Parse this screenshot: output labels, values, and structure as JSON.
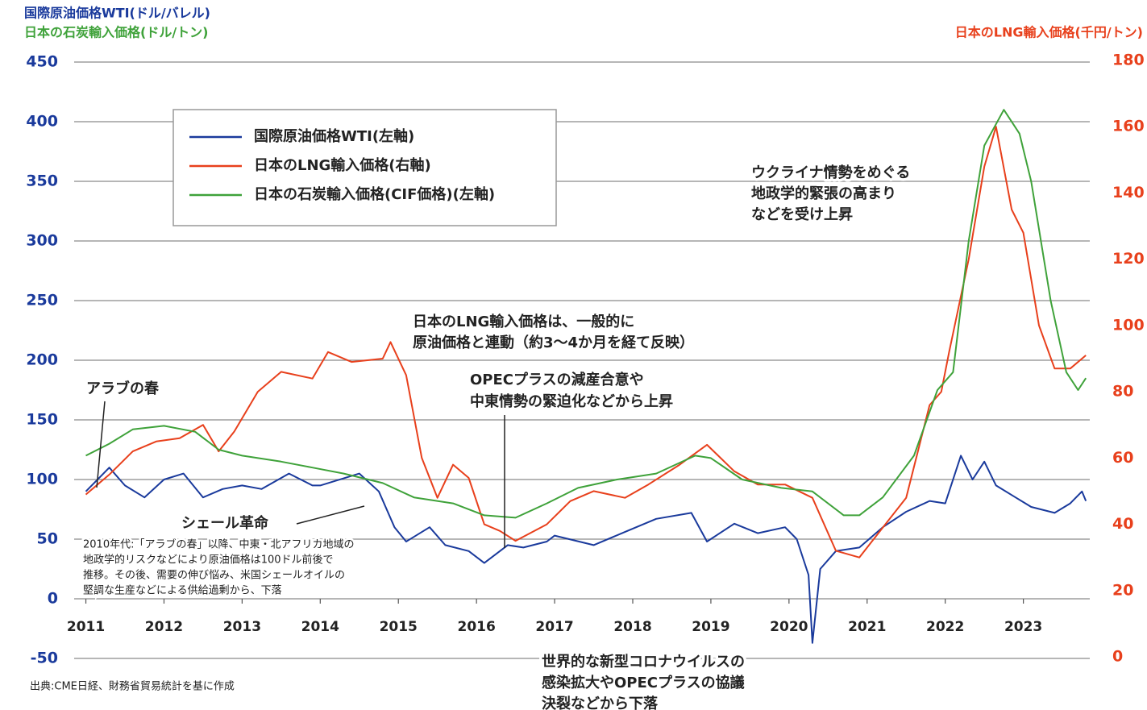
{
  "chart_data": {
    "type": "line",
    "y_label_lines": [
      "国際原油価格WTI(ドル/バレル)",
      "日本の石炭輸入価格(ドル/トン)"
    ],
    "y2_label": "日本のLNG輸入価格(千円/トン)",
    "source": "出典:CME日経、財務省貿易統計を基に作成",
    "xlim": [
      2010.85,
      2023.85
    ],
    "xticks": [
      2011,
      2012,
      2013,
      2014,
      2015,
      2016,
      2017,
      2018,
      2019,
      2020,
      2021,
      2022,
      2023
    ],
    "ylim": [
      -50,
      450
    ],
    "yticks": [
      -50,
      0,
      50,
      100,
      150,
      200,
      250,
      300,
      350,
      400,
      450
    ],
    "y2lim": [
      0,
      180
    ],
    "y2ticks": [
      0,
      20,
      40,
      60,
      80,
      100,
      120,
      140,
      160,
      180
    ],
    "grid": true,
    "series": [
      {
        "name": "国際原油価格WTI(左軸)",
        "color": "#1a3a9c",
        "x": [
          2011.0,
          2011.3,
          2011.5,
          2011.75,
          2012.0,
          2012.25,
          2012.5,
          2012.75,
          2013.0,
          2013.25,
          2013.6,
          2013.9,
          2014.0,
          2014.5,
          2014.75,
          2014.95,
          2015.1,
          2015.4,
          2015.6,
          2015.9,
          2016.1,
          2016.4,
          2016.6,
          2016.9,
          2017.0,
          2017.5,
          2017.9,
          2018.3,
          2018.75,
          2018.95,
          2019.3,
          2019.6,
          2019.95,
          2020.1,
          2020.25,
          2020.3,
          2020.4,
          2020.6,
          2020.9,
          2021.2,
          2021.5,
          2021.8,
          2022.0,
          2022.2,
          2022.35,
          2022.5,
          2022.65,
          2022.9,
          2023.1,
          2023.4,
          2023.6,
          2023.75,
          2023.8
        ],
        "values": [
          90,
          110,
          95,
          85,
          100,
          105,
          85,
          92,
          95,
          92,
          105,
          95,
          95,
          105,
          90,
          60,
          48,
          60,
          45,
          40,
          30,
          45,
          43,
          48,
          53,
          45,
          56,
          67,
          72,
          48,
          63,
          55,
          60,
          50,
          20,
          -37,
          25,
          40,
          43,
          60,
          73,
          82,
          80,
          120,
          100,
          115,
          95,
          85,
          77,
          72,
          80,
          90,
          82
        ]
      },
      {
        "name": "日本のLNG輸入価格(右軸)",
        "color": "#e8401c",
        "axis": "y2",
        "x": [
          2011.0,
          2011.3,
          2011.6,
          2011.9,
          2012.2,
          2012.5,
          2012.7,
          2012.9,
          2013.2,
          2013.5,
          2013.9,
          2014.1,
          2014.4,
          2014.8,
          2014.9,
          2015.1,
          2015.3,
          2015.5,
          2015.7,
          2015.9,
          2016.1,
          2016.3,
          2016.5,
          2016.9,
          2017.2,
          2017.5,
          2017.9,
          2018.2,
          2018.6,
          2018.95,
          2019.3,
          2019.6,
          2019.95,
          2020.3,
          2020.6,
          2020.9,
          2021.1,
          2021.5,
          2021.8,
          2021.95,
          2022.05,
          2022.3,
          2022.5,
          2022.65,
          2022.85,
          2023.0,
          2023.2,
          2023.4,
          2023.6,
          2023.8
        ],
        "values": [
          49,
          55,
          62,
          65,
          66,
          70,
          62,
          68,
          80,
          86,
          84,
          92,
          89,
          90,
          95,
          85,
          60,
          48,
          58,
          54,
          40,
          38,
          35,
          40,
          47,
          50,
          48,
          52,
          58,
          64,
          56,
          52,
          52,
          48,
          32,
          30,
          36,
          48,
          76,
          80,
          92,
          120,
          148,
          160,
          135,
          128,
          100,
          87,
          87,
          91
        ]
      },
      {
        "name": "日本の石炭輸入価格(CIF価格)(左軸)",
        "color": "#3fa23a",
        "x": [
          2011.0,
          2011.3,
          2011.6,
          2012.0,
          2012.4,
          2012.7,
          2013.0,
          2013.5,
          2013.9,
          2014.3,
          2014.8,
          2015.2,
          2015.7,
          2016.1,
          2016.5,
          2016.9,
          2017.3,
          2017.8,
          2018.3,
          2018.8,
          2019.0,
          2019.4,
          2019.9,
          2020.3,
          2020.7,
          2020.9,
          2021.2,
          2021.6,
          2021.9,
          2022.1,
          2022.3,
          2022.5,
          2022.75,
          2022.95,
          2023.1,
          2023.35,
          2023.55,
          2023.7,
          2023.8
        ],
        "values": [
          120,
          130,
          142,
          145,
          140,
          125,
          120,
          115,
          110,
          105,
          97,
          85,
          80,
          70,
          68,
          80,
          93,
          100,
          105,
          120,
          118,
          100,
          93,
          90,
          70,
          70,
          85,
          120,
          175,
          190,
          300,
          380,
          410,
          390,
          350,
          250,
          190,
          175,
          185
        ]
      }
    ],
    "annotations": [
      {
        "lines": [
          "アラブの春"
        ]
      },
      {
        "lines": [
          "シェール革命"
        ]
      },
      {
        "lines": [
          "2010年代:「アラブの春」以降、中東・北アフリカ地域の",
          "地政学的リスクなどにより原油価格は100ドル前後で",
          "推移。その後、需要の伸び悩み、米国シェールオイルの",
          "堅調な生産などによる供給過剰から、下落"
        ]
      },
      {
        "lines": [
          "日本のLNG輸入価格は、一般的に",
          "原油価格と連動（約3〜4か月を経て反映）"
        ]
      },
      {
        "lines": [
          "OPECプラスの減産合意や",
          "中東情勢の緊迫化などから上昇"
        ]
      },
      {
        "lines": [
          "ウクライナ情勢をめぐる",
          "地政学的緊張の高まり",
          "などを受け上昇"
        ]
      },
      {
        "lines": [
          "世界的な新型コロナウイルスの",
          "感染拡大やOPECプラスの協議",
          "決裂などから下落"
        ]
      }
    ]
  }
}
